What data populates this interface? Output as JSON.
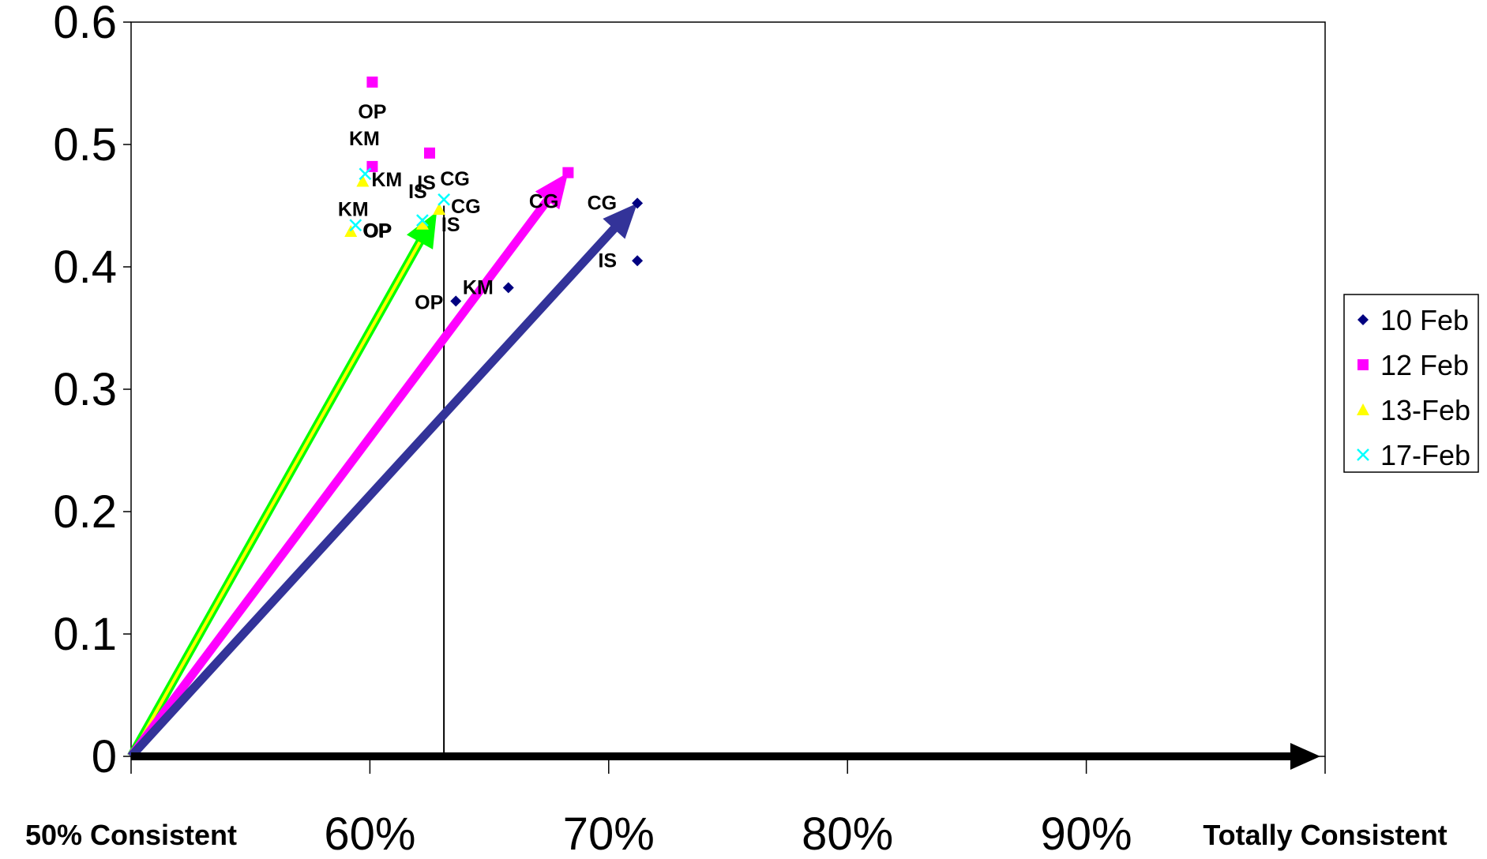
{
  "chart_data": {
    "type": "scatter",
    "title": "",
    "xlabel": "",
    "ylabel": "",
    "xlim": [
      0.5,
      1.0
    ],
    "ylim": [
      0,
      0.6
    ],
    "x_ticks": [
      {
        "value": 0.5,
        "label": "50% Consistent",
        "style": "bold-small"
      },
      {
        "value": 0.6,
        "label": "60%",
        "style": "normal"
      },
      {
        "value": 0.7,
        "label": "70%",
        "style": "normal"
      },
      {
        "value": 0.8,
        "label": "80%",
        "style": "normal"
      },
      {
        "value": 0.9,
        "label": "90%",
        "style": "normal"
      },
      {
        "value": 1.0,
        "label": "Totally Consistent",
        "style": "bold-small"
      }
    ],
    "y_ticks": [
      {
        "value": 0,
        "label": "0"
      },
      {
        "value": 0.1,
        "label": "0.1"
      },
      {
        "value": 0.2,
        "label": "0.2"
      },
      {
        "value": 0.3,
        "label": "0.3"
      },
      {
        "value": 0.4,
        "label": "0.4"
      },
      {
        "value": 0.5,
        "label": "0.5"
      },
      {
        "value": 0.6,
        "label": "0.6"
      }
    ],
    "grid": false,
    "legend_position": "right",
    "series": [
      {
        "name": "10 Feb",
        "marker": "diamond",
        "color": "#000080",
        "points": [
          {
            "x": 0.712,
            "y": 0.452,
            "label": "CG"
          },
          {
            "x": 0.712,
            "y": 0.405,
            "label": "IS"
          },
          {
            "x": 0.658,
            "y": 0.383,
            "label": "KM"
          },
          {
            "x": 0.636,
            "y": 0.372,
            "label": "OP"
          }
        ]
      },
      {
        "name": "12 Feb",
        "marker": "square",
        "color": "#FF00FF",
        "points": [
          {
            "x": 0.683,
            "y": 0.477,
            "label": "CG"
          },
          {
            "x": 0.625,
            "y": 0.493,
            "label": "IS"
          },
          {
            "x": 0.601,
            "y": 0.482,
            "label": "KM"
          },
          {
            "x": 0.601,
            "y": 0.551,
            "label": "OP"
          }
        ]
      },
      {
        "name": "13-Feb",
        "marker": "triangle",
        "color": "#FFFF00",
        "points": [
          {
            "x": 0.629,
            "y": 0.447,
            "label": "CG"
          },
          {
            "x": 0.622,
            "y": 0.435,
            "label": "IS"
          },
          {
            "x": 0.597,
            "y": 0.47,
            "label": "KM"
          },
          {
            "x": 0.592,
            "y": 0.429,
            "label": "OP"
          }
        ]
      },
      {
        "name": "17-Feb",
        "marker": "x",
        "color": "#00FFFF",
        "points": [
          {
            "x": 0.631,
            "y": 0.455,
            "label": "CG"
          },
          {
            "x": 0.622,
            "y": 0.438,
            "label": "IS"
          },
          {
            "x": 0.598,
            "y": 0.476,
            "label": "KM"
          },
          {
            "x": 0.594,
            "y": 0.434,
            "label": "OP"
          }
        ]
      }
    ],
    "arrows": [
      {
        "from": [
          0.5,
          0
        ],
        "to": [
          0.628,
          0.445
        ],
        "color": "#00FF00",
        "inner_color": "#FFFF00"
      },
      {
        "from": [
          0.5,
          0
        ],
        "to": [
          0.683,
          0.477
        ],
        "color": "#FF00FF"
      },
      {
        "from": [
          0.5,
          0
        ],
        "to": [
          0.712,
          0.452
        ],
        "color": "#333399"
      },
      {
        "from": [
          0.5,
          0
        ],
        "to": [
          0.998,
          0
        ],
        "color": "#000000"
      }
    ],
    "reference_line_x": 0.631
  }
}
